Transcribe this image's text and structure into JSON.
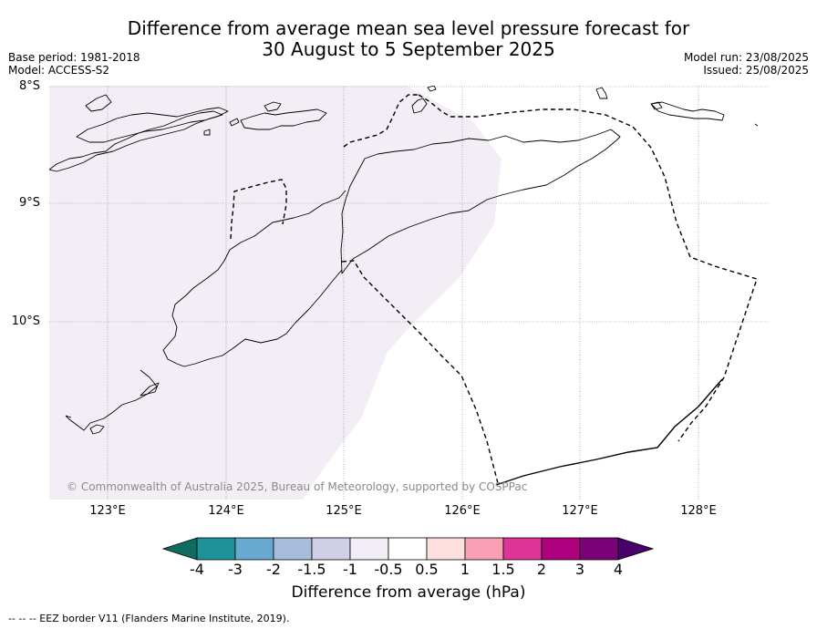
{
  "title": {
    "line1": "Difference from average mean sea level pressure forecast for",
    "line2": "30 August to 5 September 2025"
  },
  "meta_left": {
    "base_period": "Base period: 1981-2018",
    "model": "Model: ACCESS-S2"
  },
  "meta_right": {
    "model_run": "Model run: 23/08/2025",
    "issued": "Issued: 25/08/2025"
  },
  "map": {
    "lat_labels": [
      "8°S",
      "9°S",
      "10°S"
    ],
    "lon_labels": [
      "123°E",
      "124°E",
      "125°E",
      "126°E",
      "127°E",
      "128°E"
    ],
    "anomaly_region": {
      "category": "-0.5 to -1 hPa",
      "color": "#f3eef6"
    },
    "eez_border_style": "dashed",
    "copyright": "© Commonwealth of Australia 2025, Bureau of Meteorology, supported by COSPPac"
  },
  "colorbar": {
    "tick_labels": [
      "-4",
      "-3",
      "-2",
      "-1.5",
      "-1",
      "-0.5",
      "0.5",
      "1",
      "1.5",
      "2",
      "3",
      "4"
    ],
    "colors": [
      "#116b60",
      "#1f9199",
      "#68a9cf",
      "#a6bddb",
      "#d0d1e6",
      "#f3eef6",
      "#ffffff",
      "#fde0dd",
      "#fa9fb5",
      "#dd3497",
      "#ae017e",
      "#7a0177",
      "#49006a"
    ],
    "label": "Difference from average (hPa)"
  },
  "footnote": "--  --  -- EEZ border V11 (Flanders Marine Institute, 2019)."
}
